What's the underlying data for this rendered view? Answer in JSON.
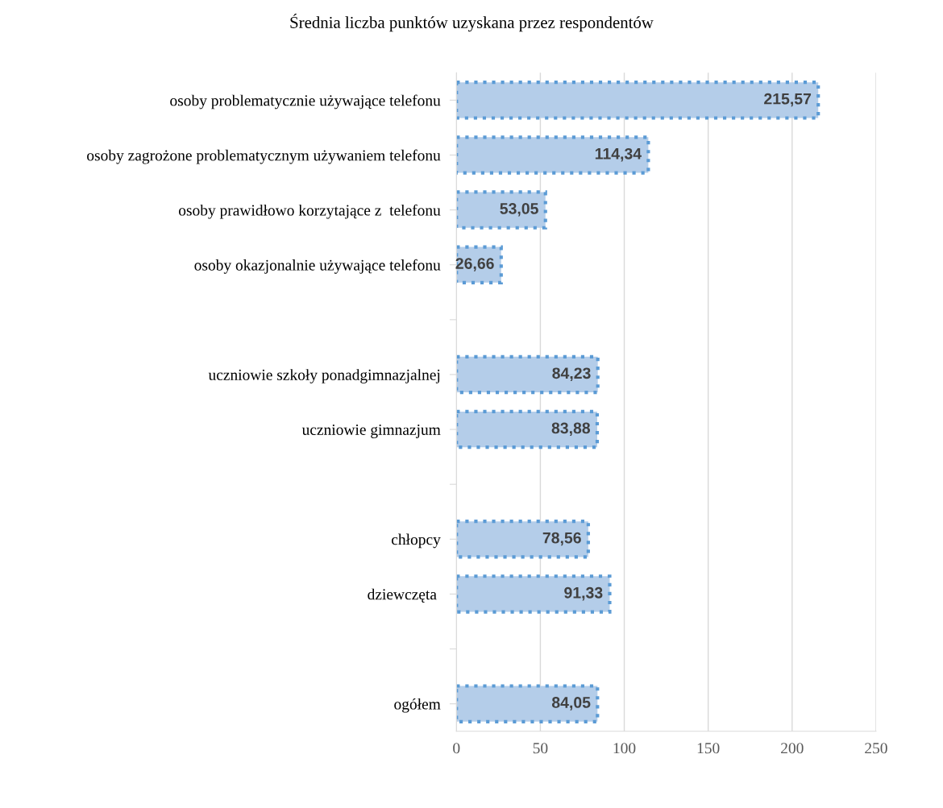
{
  "chart_data": {
    "type": "bar",
    "orientation": "horizontal",
    "title": "Średnia liczba punktów uzyskana przez respondentów",
    "categories": [
      "osoby problematycznie używające telefonu",
      "osoby zagrożone problematycznym używaniem telefonu",
      "osoby prawidłowo korzytające z  telefonu",
      "osoby okazjonalnie używające telefonu",
      null,
      "uczniowie szkoły ponadgimnazjalnej",
      "uczniowie gimnazjum",
      null,
      "chłopcy",
      "dziewczęta ",
      null,
      "ogółem"
    ],
    "values": [
      215.57,
      114.34,
      53.05,
      26.66,
      null,
      84.23,
      83.88,
      null,
      78.56,
      91.33,
      null,
      84.05
    ],
    "value_labels": [
      "215,57",
      "114,34",
      "53,05",
      "26,66",
      null,
      "84,23",
      "83,88",
      null,
      "78,56",
      "91,33",
      null,
      "84,05"
    ],
    "color": "#b4cde9",
    "xlim": [
      0,
      250
    ],
    "xticks": [
      0,
      50,
      100,
      150,
      200,
      250
    ],
    "grid": "x",
    "legend": false
  }
}
